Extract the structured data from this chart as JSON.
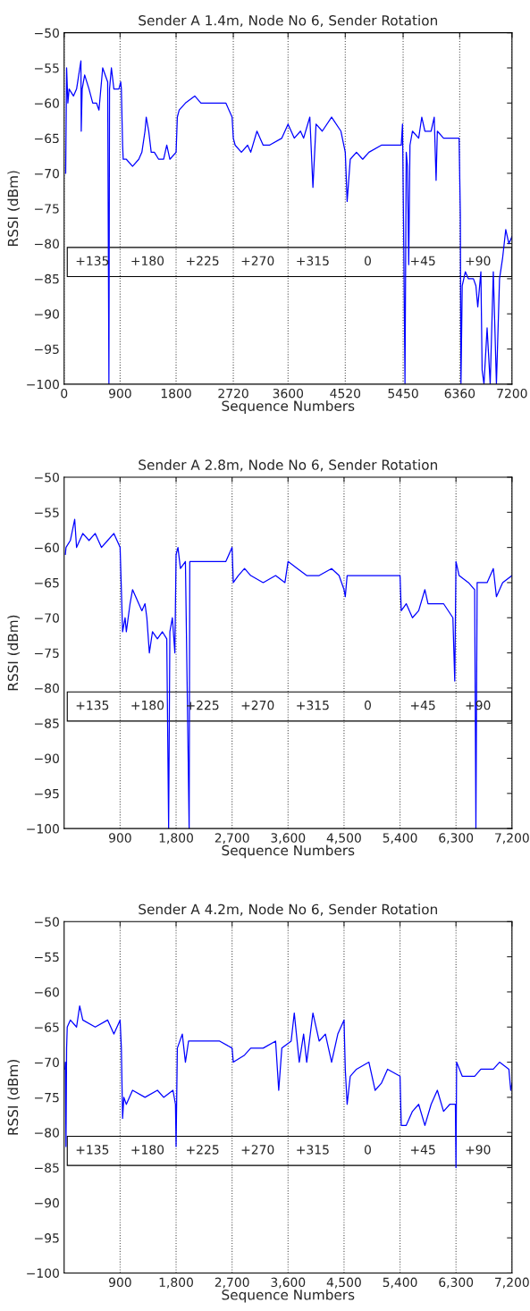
{
  "chart_data": [
    {
      "type": "line",
      "title": "Sender A 1.4m, Node No 6, Sender Rotation",
      "xlabel": "Sequence Numbers",
      "ylabel": "RSSI (dBm)",
      "xlim": [
        0,
        7200
      ],
      "ylim": [
        -100,
        -50
      ],
      "xticks": [
        0,
        900,
        1800,
        2720,
        3600,
        4520,
        5450,
        6360,
        7200
      ],
      "yticks": [
        -100,
        -95,
        -90,
        -85,
        -80,
        -75,
        -70,
        -65,
        -60,
        -55,
        -50
      ],
      "grid": "x",
      "marker": "none",
      "line_style": "solid",
      "series": [
        {
          "color": "#0000ff",
          "x": [
            25,
            40,
            60,
            80,
            150,
            200,
            270,
            275,
            290,
            330,
            400,
            460,
            520,
            560,
            600,
            620,
            700,
            720,
            730,
            760,
            800,
            880,
            910,
            920,
            940,
            950,
            1000,
            1100,
            1200,
            1250,
            1300,
            1320,
            1360,
            1400,
            1450,
            1520,
            1600,
            1650,
            1700,
            1800,
            1820,
            1850,
            1950,
            2100,
            2200,
            2400,
            2600,
            2700,
            2720,
            2750,
            2850,
            2950,
            3000,
            3100,
            3200,
            3300,
            3500,
            3600,
            3700,
            3800,
            3850,
            3950,
            4000,
            4050,
            4150,
            4300,
            4450,
            4520,
            4550,
            4600,
            4700,
            4800,
            4900,
            5100,
            5300,
            5420,
            5440,
            5460,
            5480,
            5500,
            5520,
            5540,
            5560,
            5600,
            5700,
            5750,
            5800,
            5900,
            5950,
            5980,
            6000,
            6100,
            6200,
            6350,
            6370,
            6380,
            6400,
            6450,
            6500,
            6580,
            6620,
            6650,
            6700,
            6720,
            6750,
            6800,
            6850,
            6900,
            6950,
            7000,
            7050,
            7100,
            7150,
            7200
          ],
          "values": [
            -70,
            -55,
            -60,
            -58,
            -59,
            -58,
            -54,
            -64,
            -58,
            -56,
            -58,
            -60,
            -60,
            -61,
            -57,
            -55,
            -57,
            -100,
            -58,
            -55,
            -58,
            -58,
            -57,
            -58,
            -66,
            -68,
            -68,
            -69,
            -68,
            -67,
            -64,
            -62,
            -64,
            -67,
            -67,
            -68,
            -68,
            -66,
            -68,
            -67,
            -62,
            -61,
            -60,
            -59,
            -60,
            -60,
            -60,
            -62,
            -65,
            -66,
            -67,
            -66,
            -67,
            -64,
            -66,
            -66,
            -65,
            -63,
            -65,
            -64,
            -65,
            -62,
            -72,
            -63,
            -64,
            -62,
            -64,
            -67,
            -74,
            -68,
            -67,
            -68,
            -67,
            -66,
            -66,
            -66,
            -63,
            -80,
            -100,
            -67,
            -69,
            -83,
            -66,
            -64,
            -65,
            -62,
            -64,
            -64,
            -62,
            -71,
            -64,
            -65,
            -65,
            -65,
            -76,
            -100,
            -86,
            -84,
            -85,
            -85,
            -86,
            -89,
            -84,
            -98,
            -100,
            -92,
            -100,
            -84,
            -100,
            -85,
            -82,
            -78,
            -80,
            -79
          ]
        }
      ],
      "annotations": [
        "+135",
        "+180",
        "+225",
        "+270",
        "+315",
        "0",
        "+45",
        "+90"
      ]
    },
    {
      "type": "line",
      "title": "Sender A 2.8m, Node No 6, Sender Rotation",
      "xlabel": "Sequence Numbers",
      "ylabel": "RSSI (dBm)",
      "xlim": [
        0,
        7200
      ],
      "ylim": [
        -100,
        -50
      ],
      "xticks": [
        {
          "value": 900,
          "label": "900"
        },
        {
          "value": 1800,
          "label": "1,800"
        },
        {
          "value": 2700,
          "label": "2,700"
        },
        {
          "value": 3600,
          "label": "3,600"
        },
        {
          "value": 4500,
          "label": "4,500"
        },
        {
          "value": 5400,
          "label": "5,400"
        },
        {
          "value": 6300,
          "label": "6,300"
        },
        {
          "value": 7200,
          "label": "7,200"
        }
      ],
      "yticks": [
        -100,
        -95,
        -90,
        -85,
        -80,
        -75,
        -70,
        -65,
        -60,
        -55,
        -50
      ],
      "grid": "x",
      "marker": "none",
      "line_style": "solid",
      "series": [
        {
          "color": "#0000ff",
          "x": [
            20,
            30,
            100,
            170,
            200,
            300,
            400,
            500,
            600,
            700,
            800,
            900,
            920,
            940,
            980,
            1000,
            1060,
            1100,
            1200,
            1250,
            1300,
            1330,
            1370,
            1420,
            1500,
            1580,
            1650,
            1680,
            1700,
            1740,
            1780,
            1800,
            1830,
            1870,
            1950,
            2010,
            2020,
            2200,
            2400,
            2600,
            2700,
            2720,
            2800,
            2900,
            3000,
            3200,
            3400,
            3550,
            3600,
            3750,
            3900,
            4100,
            4300,
            4420,
            4500,
            4520,
            4550,
            4800,
            5000,
            5200,
            5400,
            5420,
            5500,
            5600,
            5700,
            5800,
            5850,
            6000,
            6100,
            6250,
            6280,
            6300,
            6350,
            6500,
            6600,
            6620,
            6640,
            6800,
            6900,
            6950,
            7050,
            7200
          ],
          "values": [
            -61,
            -60,
            -59,
            -56,
            -60,
            -58,
            -59,
            -58,
            -60,
            -59,
            -58,
            -60,
            -66,
            -72,
            -70,
            -72,
            -68,
            -66,
            -68,
            -69,
            -68,
            -70,
            -75,
            -72,
            -73,
            -72,
            -73,
            -100,
            -72,
            -70,
            -75,
            -61,
            -60,
            -63,
            -62,
            -100,
            -62,
            -62,
            -62,
            -62,
            -60,
            -65,
            -64,
            -63,
            -64,
            -65,
            -64,
            -65,
            -62,
            -63,
            -64,
            -64,
            -63,
            -64,
            -66,
            -67,
            -64,
            -64,
            -64,
            -64,
            -64,
            -69,
            -68,
            -70,
            -69,
            -66,
            -68,
            -68,
            -68,
            -70,
            -79,
            -62,
            -64,
            -65,
            -66,
            -100,
            -65,
            -65,
            -63,
            -67,
            -65,
            -64
          ]
        }
      ],
      "annotations": [
        "+135",
        "+180",
        "+225",
        "+270",
        "+315",
        "0",
        "+45",
        "+90"
      ]
    },
    {
      "type": "line",
      "title": "Sender A 4.2m, Node No 6, Sender Rotation",
      "xlabel": "Sequence Numbers",
      "ylabel": "RSSI (dBm)",
      "xlim": [
        0,
        7200
      ],
      "ylim": [
        -100,
        -50
      ],
      "xticks": [
        {
          "value": 900,
          "label": "900"
        },
        {
          "value": 1800,
          "label": "1,800"
        },
        {
          "value": 2700,
          "label": "2,700"
        },
        {
          "value": 3600,
          "label": "3,600"
        },
        {
          "value": 4500,
          "label": "4,500"
        },
        {
          "value": 5400,
          "label": "5,400"
        },
        {
          "value": 6300,
          "label": "6,300"
        },
        {
          "value": 7200,
          "label": "7,200"
        }
      ],
      "yticks": [
        -100,
        -95,
        -90,
        -85,
        -80,
        -75,
        -70,
        -65,
        -60,
        -55,
        -50
      ],
      "grid": "x",
      "marker": "none",
      "line_style": "solid",
      "series": [
        {
          "color": "#0000ff",
          "x": [
            15,
            20,
            30,
            40,
            50,
            100,
            200,
            250,
            300,
            500,
            700,
            800,
            900,
            920,
            940,
            960,
            1000,
            1100,
            1300,
            1500,
            1600,
            1750,
            1790,
            1800,
            1820,
            1900,
            1950,
            2000,
            2300,
            2500,
            2700,
            2720,
            2900,
            3000,
            3200,
            3400,
            3450,
            3500,
            3650,
            3700,
            3780,
            3850,
            3900,
            4000,
            4100,
            4200,
            4300,
            4400,
            4500,
            4520,
            4550,
            4600,
            4700,
            4900,
            5000,
            5100,
            5200,
            5400,
            5420,
            5500,
            5600,
            5700,
            5800,
            5900,
            6000,
            6100,
            6200,
            6290,
            6300,
            6310,
            6400,
            6600,
            6700,
            6900,
            7000,
            7150,
            7180,
            7200
          ],
          "values": [
            -71,
            -70,
            -82,
            -68,
            -65,
            -64,
            -65,
            -62,
            -64,
            -65,
            -64,
            -66,
            -64,
            -68,
            -78,
            -75,
            -76,
            -74,
            -75,
            -74,
            -75,
            -74,
            -76,
            -82,
            -68,
            -66,
            -70,
            -67,
            -67,
            -67,
            -68,
            -70,
            -69,
            -68,
            -68,
            -67,
            -74,
            -68,
            -67,
            -63,
            -70,
            -66,
            -70,
            -63,
            -67,
            -66,
            -70,
            -66,
            -64,
            -71,
            -76,
            -72,
            -71,
            -70,
            -74,
            -73,
            -71,
            -72,
            -79,
            -79,
            -77,
            -76,
            -79,
            -76,
            -74,
            -77,
            -76,
            -76,
            -85,
            -70,
            -72,
            -72,
            -71,
            -71,
            -70,
            -71,
            -74,
            -73
          ]
        }
      ],
      "annotations": [
        "+135",
        "+180",
        "+225",
        "+270",
        "+315",
        "0",
        "+45",
        "+90"
      ]
    }
  ]
}
